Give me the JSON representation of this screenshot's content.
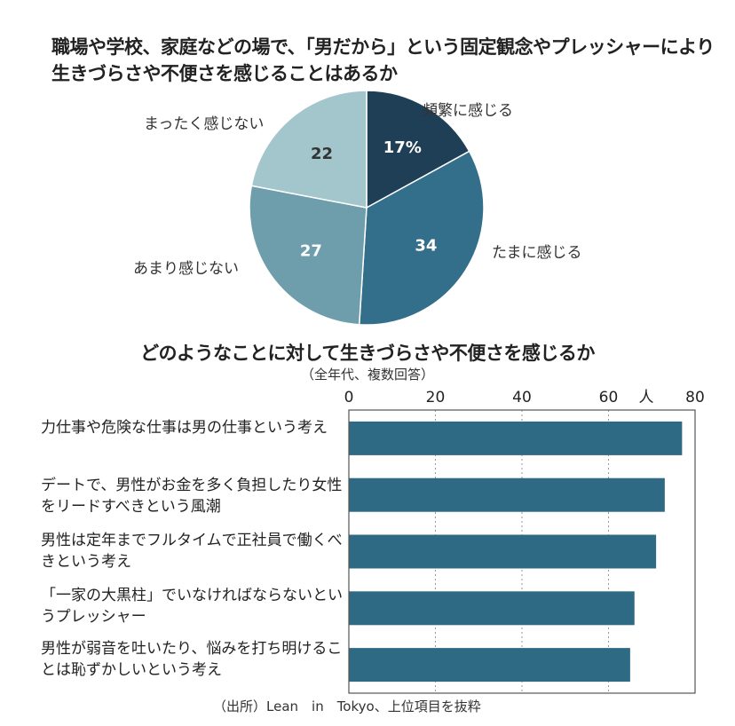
{
  "chart_data": [
    {
      "type": "pie",
      "title": "職場や学校、家庭などの場で、「男だから」という固定観念やプレッシャーにより生きづらさや不便さを感じることはあるか",
      "slices": [
        {
          "label": "頻繁に感じる",
          "value": 17,
          "display": "17%",
          "color": "#1f3f57"
        },
        {
          "label": "たまに感じる",
          "value": 34,
          "display": "34",
          "color": "#336f8a"
        },
        {
          "label": "あまり感じない",
          "value": 27,
          "display": "27",
          "color": "#6e9eab"
        },
        {
          "label": "まったく感じない",
          "value": 22,
          "display": "22",
          "color": "#a3c6cd"
        }
      ]
    },
    {
      "type": "bar",
      "orientation": "horizontal",
      "title": "どのようなことに対して生きづらさや不便さを感じるか",
      "subtitle": "（全年代、複数回答）",
      "unit": "人",
      "xlim": [
        0,
        80
      ],
      "xticks": [
        "0",
        "20",
        "40",
        "60",
        "80"
      ],
      "grid": true,
      "bar_color": "#2f6a85",
      "categories": [
        "力仕事や危険な仕事は男の仕事という考え",
        "デートで、男性がお金を多く負担したり女性をリードすべきという風潮",
        "男性は定年までフルタイムで正社員で働くべきという考え",
        "「一家の大黒柱」でいなければならないというプレッシャー",
        "男性が弱音を吐いたり、悩みを打ち明けることは恥ずかしいという考え"
      ],
      "values": [
        77,
        73,
        71,
        66,
        65
      ]
    }
  ],
  "source": "（出所）Lean　in　Tokyo、上位項目を抜粋"
}
